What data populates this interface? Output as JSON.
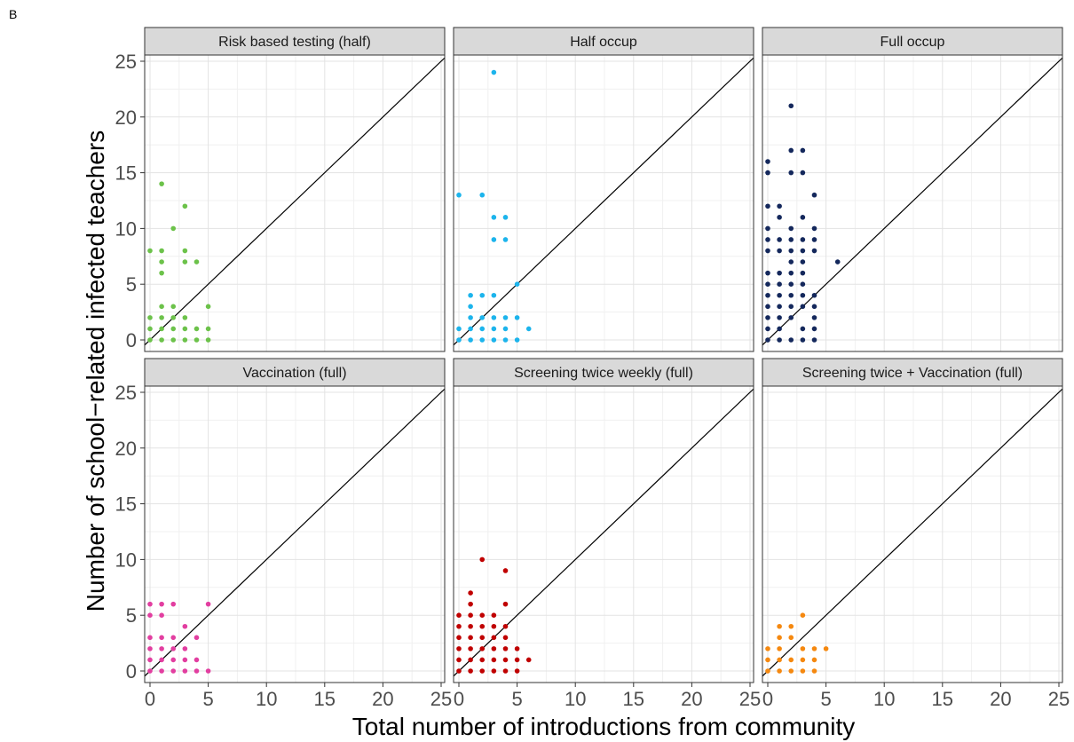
{
  "figure": {
    "panel_label": "B",
    "xlabel": "Total number of introductions from community",
    "ylabel": "Number of school−related infected teachers"
  },
  "chart_data": {
    "type": "scatter",
    "facets": true,
    "xlim": [
      0,
      25
    ],
    "ylim": [
      0,
      25
    ],
    "x_ticks": [
      0,
      5,
      10,
      15,
      20,
      25
    ],
    "y_ticks": [
      0,
      5,
      10,
      15,
      20,
      25
    ],
    "grid": true,
    "reference_line": "y = x",
    "panels": [
      {
        "title": "Risk based testing (half)",
        "color": "#6cc24a",
        "points": [
          [
            0,
            8
          ],
          [
            0,
            2
          ],
          [
            0,
            1
          ],
          [
            0,
            0
          ],
          [
            1,
            14
          ],
          [
            1,
            8
          ],
          [
            1,
            7
          ],
          [
            1,
            6
          ],
          [
            1,
            3
          ],
          [
            1,
            2
          ],
          [
            1,
            1
          ],
          [
            1,
            0
          ],
          [
            2,
            10
          ],
          [
            2,
            3
          ],
          [
            2,
            2
          ],
          [
            2,
            1
          ],
          [
            2,
            0
          ],
          [
            3,
            12
          ],
          [
            3,
            8
          ],
          [
            3,
            7
          ],
          [
            3,
            2
          ],
          [
            3,
            1
          ],
          [
            3,
            0
          ],
          [
            4,
            7
          ],
          [
            4,
            1
          ],
          [
            4,
            0
          ],
          [
            5,
            3
          ],
          [
            5,
            1
          ],
          [
            5,
            0
          ]
        ]
      },
      {
        "title": "Half occup",
        "color": "#1cb4ec",
        "points": [
          [
            0,
            13
          ],
          [
            0,
            1
          ],
          [
            0,
            0
          ],
          [
            1,
            4
          ],
          [
            1,
            3
          ],
          [
            1,
            2
          ],
          [
            1,
            1
          ],
          [
            1,
            0
          ],
          [
            2,
            13
          ],
          [
            2,
            4
          ],
          [
            2,
            2
          ],
          [
            2,
            1
          ],
          [
            2,
            0
          ],
          [
            3,
            24
          ],
          [
            3,
            11
          ],
          [
            3,
            9
          ],
          [
            3,
            4
          ],
          [
            3,
            2
          ],
          [
            3,
            1
          ],
          [
            3,
            0
          ],
          [
            4,
            11
          ],
          [
            4,
            9
          ],
          [
            4,
            2
          ],
          [
            4,
            1
          ],
          [
            4,
            0
          ],
          [
            5,
            5
          ],
          [
            5,
            2
          ],
          [
            5,
            0
          ],
          [
            6,
            1
          ]
        ]
      },
      {
        "title": "Full occup",
        "color": "#14285c",
        "points": [
          [
            0,
            16
          ],
          [
            0,
            15
          ],
          [
            0,
            12
          ],
          [
            0,
            10
          ],
          [
            0,
            9
          ],
          [
            0,
            8
          ],
          [
            0,
            6
          ],
          [
            0,
            5
          ],
          [
            0,
            4
          ],
          [
            0,
            3
          ],
          [
            0,
            2
          ],
          [
            0,
            1
          ],
          [
            0,
            0
          ],
          [
            1,
            12
          ],
          [
            1,
            11
          ],
          [
            1,
            9
          ],
          [
            1,
            8
          ],
          [
            1,
            6
          ],
          [
            1,
            5
          ],
          [
            1,
            4
          ],
          [
            1,
            3
          ],
          [
            1,
            2
          ],
          [
            1,
            1
          ],
          [
            1,
            0
          ],
          [
            2,
            21
          ],
          [
            2,
            17
          ],
          [
            2,
            15
          ],
          [
            2,
            10
          ],
          [
            2,
            9
          ],
          [
            2,
            8
          ],
          [
            2,
            7
          ],
          [
            2,
            6
          ],
          [
            2,
            5
          ],
          [
            2,
            4
          ],
          [
            2,
            3
          ],
          [
            2,
            2
          ],
          [
            2,
            0
          ],
          [
            3,
            17
          ],
          [
            3,
            15
          ],
          [
            3,
            11
          ],
          [
            3,
            9
          ],
          [
            3,
            8
          ],
          [
            3,
            7
          ],
          [
            3,
            6
          ],
          [
            3,
            5
          ],
          [
            3,
            4
          ],
          [
            3,
            3
          ],
          [
            3,
            1
          ],
          [
            3,
            0
          ],
          [
            4,
            13
          ],
          [
            4,
            10
          ],
          [
            4,
            9
          ],
          [
            4,
            8
          ],
          [
            4,
            4
          ],
          [
            4,
            3
          ],
          [
            4,
            2
          ],
          [
            4,
            1
          ],
          [
            4,
            0
          ],
          [
            6,
            7
          ]
        ]
      },
      {
        "title": "Vaccination (full)",
        "color": "#e23ea0",
        "points": [
          [
            0,
            6
          ],
          [
            0,
            5
          ],
          [
            0,
            3
          ],
          [
            0,
            2
          ],
          [
            0,
            1
          ],
          [
            0,
            0
          ],
          [
            1,
            6
          ],
          [
            1,
            5
          ],
          [
            1,
            3
          ],
          [
            1,
            2
          ],
          [
            1,
            1
          ],
          [
            1,
            0
          ],
          [
            2,
            6
          ],
          [
            2,
            3
          ],
          [
            2,
            2
          ],
          [
            2,
            1
          ],
          [
            2,
            0
          ],
          [
            3,
            4
          ],
          [
            3,
            2
          ],
          [
            3,
            1
          ],
          [
            3,
            0
          ],
          [
            4,
            3
          ],
          [
            4,
            1
          ],
          [
            4,
            0
          ],
          [
            5,
            6
          ],
          [
            5,
            0
          ]
        ]
      },
      {
        "title": "Screening twice weekly (full)",
        "color": "#c00000",
        "points": [
          [
            0,
            5
          ],
          [
            0,
            4
          ],
          [
            0,
            3
          ],
          [
            0,
            2
          ],
          [
            0,
            1
          ],
          [
            0,
            0
          ],
          [
            1,
            7
          ],
          [
            1,
            6
          ],
          [
            1,
            5
          ],
          [
            1,
            4
          ],
          [
            1,
            3
          ],
          [
            1,
            2
          ],
          [
            1,
            1
          ],
          [
            1,
            0
          ],
          [
            2,
            10
          ],
          [
            2,
            5
          ],
          [
            2,
            4
          ],
          [
            2,
            3
          ],
          [
            2,
            2
          ],
          [
            2,
            1
          ],
          [
            2,
            0
          ],
          [
            3,
            5
          ],
          [
            3,
            4
          ],
          [
            3,
            3
          ],
          [
            3,
            2
          ],
          [
            3,
            1
          ],
          [
            3,
            0
          ],
          [
            4,
            9
          ],
          [
            4,
            6
          ],
          [
            4,
            4
          ],
          [
            4,
            3
          ],
          [
            4,
            2
          ],
          [
            4,
            1
          ],
          [
            4,
            0
          ],
          [
            5,
            2
          ],
          [
            5,
            1
          ],
          [
            5,
            0
          ],
          [
            6,
            1
          ]
        ]
      },
      {
        "title": "Screening twice + Vaccination (full)",
        "color": "#f5880f",
        "points": [
          [
            0,
            2
          ],
          [
            0,
            1
          ],
          [
            0,
            0
          ],
          [
            1,
            4
          ],
          [
            1,
            3
          ],
          [
            1,
            2
          ],
          [
            1,
            1
          ],
          [
            1,
            0
          ],
          [
            2,
            4
          ],
          [
            2,
            3
          ],
          [
            2,
            1
          ],
          [
            2,
            0
          ],
          [
            3,
            5
          ],
          [
            3,
            2
          ],
          [
            3,
            1
          ],
          [
            3,
            0
          ],
          [
            4,
            2
          ],
          [
            4,
            1
          ],
          [
            4,
            0
          ],
          [
            5,
            2
          ]
        ]
      }
    ]
  }
}
